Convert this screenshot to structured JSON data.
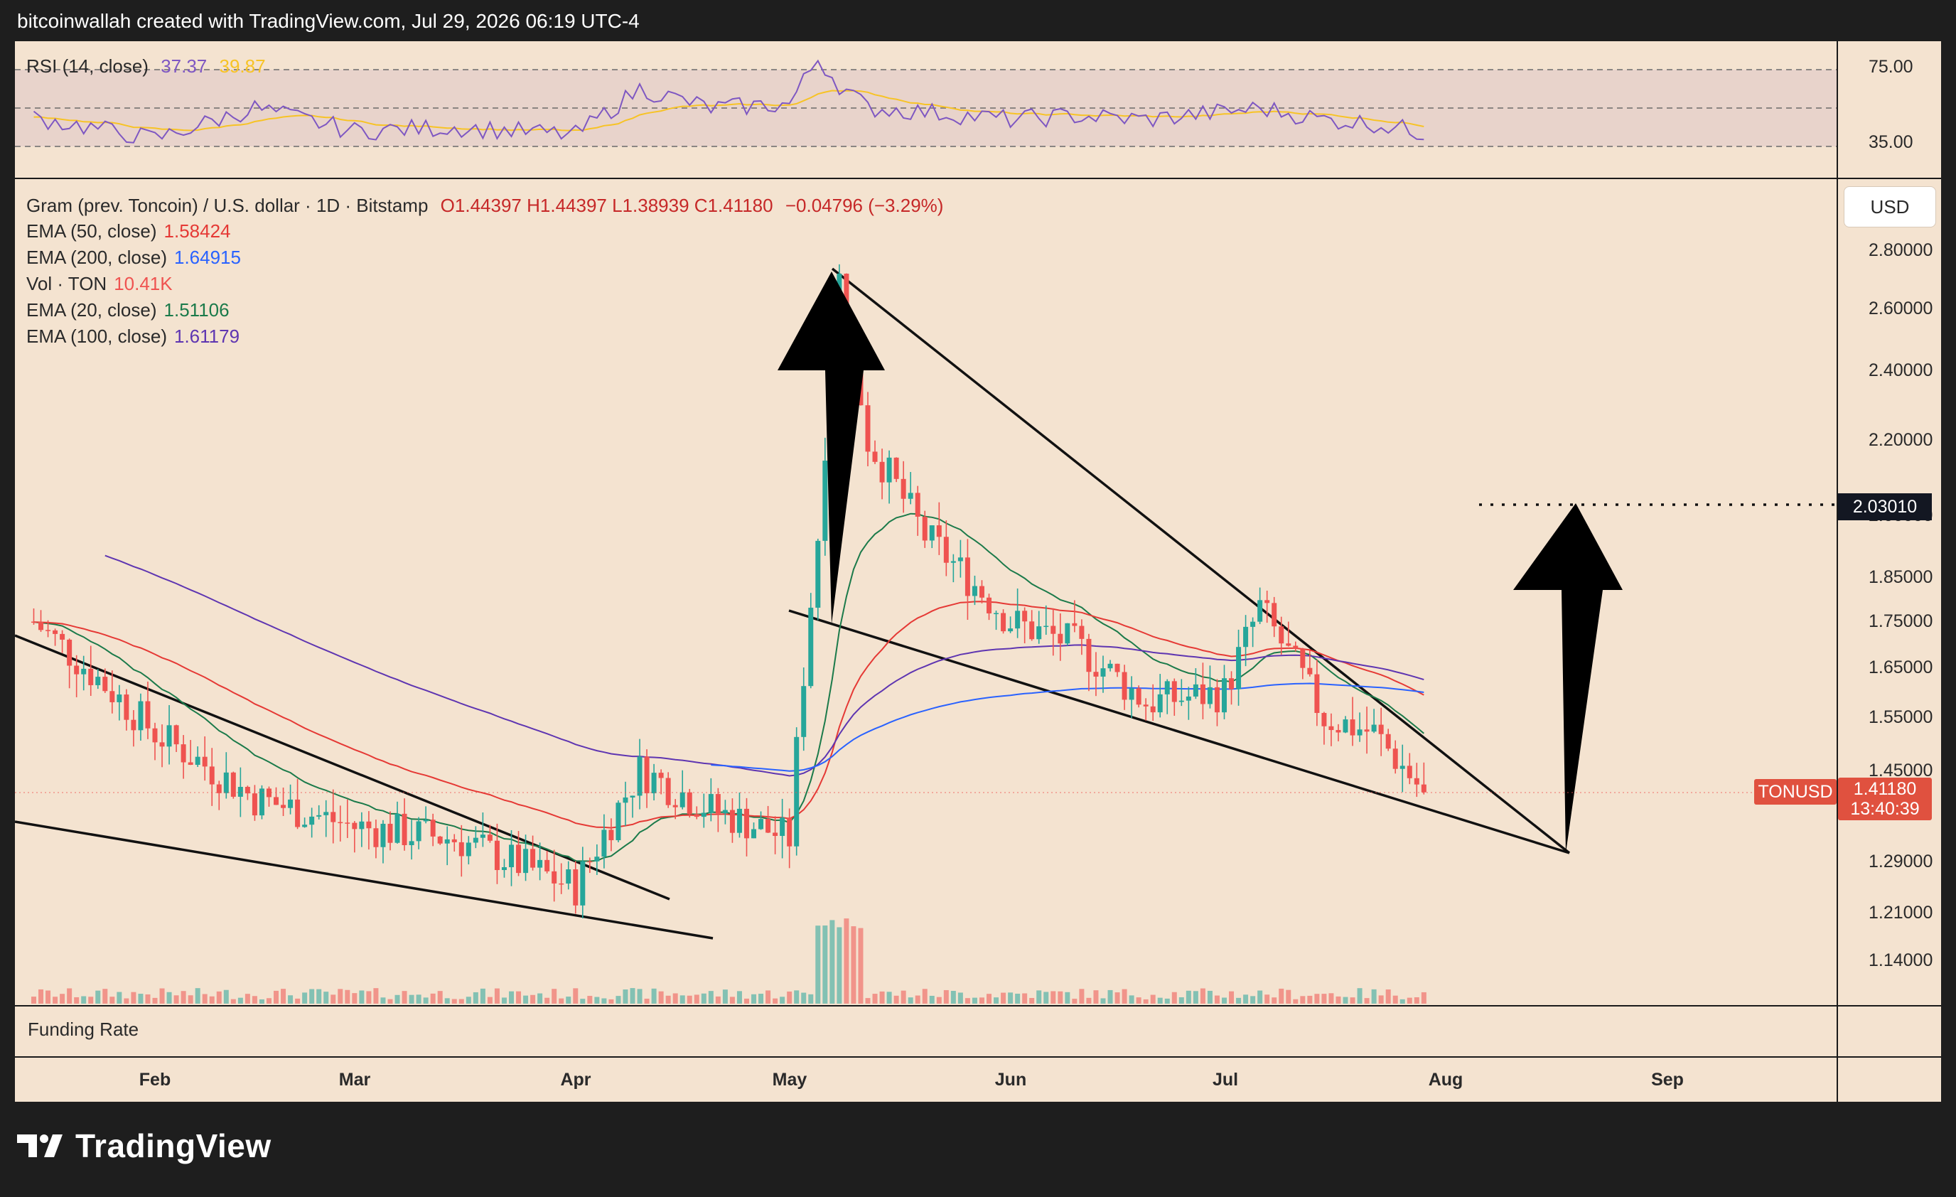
{
  "header": {
    "attribution": "bitcoinwallah created with TradingView.com, Jul 29, 2026 06:19 UTC-4"
  },
  "rsi": {
    "label": "RSI (14, close)",
    "value": "37.37",
    "ma": "39.87",
    "ticks": [
      "75.00",
      "35.00"
    ],
    "bands": [
      70,
      50,
      30
    ],
    "color": "#7e57c2",
    "ma_color": "#f7c325"
  },
  "legend": {
    "symbol": "Gram (prev. Toncoin) / U.S. dollar · 1D · Bitstamp",
    "ohlc": "O1.44397  H1.44397  L1.38939  C1.41180",
    "change": "−0.04796 (−3.29%)",
    "indicators": [
      {
        "label": "EMA (50, close)",
        "value": "1.58424",
        "color": "#e53935"
      },
      {
        "label": "EMA (200, close)",
        "value": "1.64915",
        "color": "#2962ff"
      },
      {
        "label": "Vol · TON",
        "value": "10.41K",
        "color": "#ef5350"
      },
      {
        "label": "EMA (20, close)",
        "value": "1.51106",
        "color": "#1b7a4a"
      },
      {
        "label": "EMA (100, close)",
        "value": "1.61179",
        "color": "#5e35b1"
      }
    ]
  },
  "currency_button": "USD",
  "price_axis": [
    "2.80000",
    "2.60000",
    "2.40000",
    "2.20000",
    "2.00000",
    "1.85000",
    "1.75000",
    "1.65000",
    "1.55000",
    "1.45000",
    "1.29000",
    "1.21000",
    "1.14000"
  ],
  "target_label": "2.03010",
  "last_price": {
    "symbol": "TONUSD",
    "price": "1.41180",
    "countdown": "13:40:39"
  },
  "months": [
    "Feb",
    "Mar",
    "Apr",
    "May",
    "Jun",
    "Jul",
    "Aug",
    "Sep"
  ],
  "funding_label": "Funding Rate",
  "brand": "TradingView",
  "colors": {
    "up": "#26a69a",
    "down": "#ef5350",
    "background": "#f4e3d0"
  },
  "chart_data": {
    "type": "line",
    "title": "Gram (prev. Toncoin) / U.S. dollar · 1D · Bitstamp",
    "x": [
      "2026-01-15",
      "2026-02-01",
      "2026-02-15",
      "2026-03-01",
      "2026-03-15",
      "2026-04-01",
      "2026-04-10",
      "2026-04-20",
      "2026-05-01",
      "2026-05-05",
      "2026-05-08",
      "2026-05-12",
      "2026-05-20",
      "2026-06-01",
      "2026-06-10",
      "2026-06-20",
      "2026-07-01",
      "2026-07-06",
      "2026-07-15",
      "2026-07-22",
      "2026-07-29"
    ],
    "series": [
      {
        "name": "TONUSD",
        "values": [
          1.75,
          1.52,
          1.4,
          1.35,
          1.33,
          1.25,
          1.45,
          1.38,
          1.33,
          1.95,
          2.7,
          2.2,
          1.95,
          1.75,
          1.7,
          1.58,
          1.6,
          1.78,
          1.55,
          1.52,
          1.41
        ]
      }
    ],
    "rsi": [
      45,
      34,
      50,
      38,
      40,
      36,
      60,
      50,
      52,
      76,
      62,
      50,
      48,
      44,
      46,
      44,
      48,
      50,
      44,
      42,
      37
    ],
    "xlabel": "",
    "ylabel": "",
    "ylim": [
      1.05,
      3.0
    ],
    "log_scale": true,
    "annotations": [
      "falling wedge Feb–Apr",
      "falling wedge May–Aug",
      "up arrow at May spike",
      "up arrow to target 2.03010 (Aug)"
    ],
    "grid": false
  }
}
